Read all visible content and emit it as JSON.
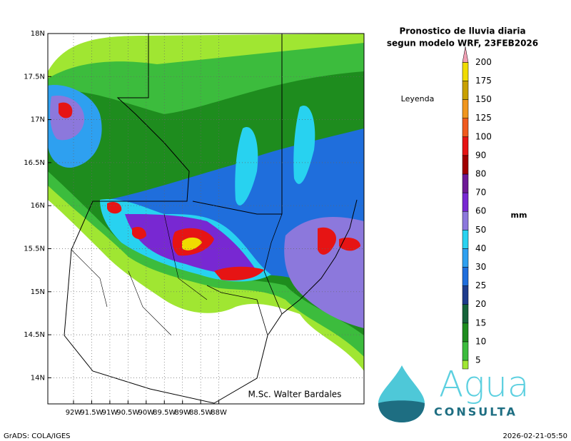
{
  "title": {
    "line1": "Pronostico de lluvia diaria",
    "line2": "segun modelo WRF,  23FEB2026"
  },
  "map": {
    "lat_ticks": [
      {
        "value": 18,
        "label": "18N"
      },
      {
        "value": 17.5,
        "label": "17.5N"
      },
      {
        "value": 17,
        "label": "17N"
      },
      {
        "value": 16.5,
        "label": "16.5N"
      },
      {
        "value": 16,
        "label": "16N"
      },
      {
        "value": 15.5,
        "label": "15.5N"
      },
      {
        "value": 15,
        "label": "15N"
      },
      {
        "value": 14.5,
        "label": "14.5N"
      },
      {
        "value": 14,
        "label": "14N"
      }
    ],
    "lon_ticks": [
      {
        "value": -92,
        "label": "92W"
      },
      {
        "value": -91.5,
        "label": "91.5W"
      },
      {
        "value": -91,
        "label": "91W"
      },
      {
        "value": -90.5,
        "label": "90.5W"
      },
      {
        "value": -90,
        "label": "90W"
      },
      {
        "value": -89.5,
        "label": "89.5W"
      },
      {
        "value": -89,
        "label": "89W"
      },
      {
        "value": -88.5,
        "label": "88.5W"
      },
      {
        "value": -88,
        "label": "88W"
      }
    ],
    "credit": "M.Sc. Walter Bardales"
  },
  "legend": {
    "title": "Leyenda",
    "unit": "mm",
    "levels": [
      5,
      10,
      15,
      20,
      25,
      30,
      40,
      50,
      60,
      70,
      80,
      90,
      100,
      125,
      150,
      175,
      200
    ],
    "colors": [
      "#a0e632",
      "#3cbc3d",
      "#1e8c1e",
      "#16633a",
      "#1e3c8c",
      "#1f6edc",
      "#2ea0f0",
      "#28d2f0",
      "#8c78dc",
      "#7828d2",
      "#6e1a96",
      "#a00000",
      "#e61414",
      "#f05a1e",
      "#f0961e",
      "#c8a000",
      "#f0dc00",
      "#f0a0b4"
    ]
  },
  "logo": {
    "word": "Agua",
    "subword": "CONSULTA"
  },
  "footer": {
    "left": "GrADS: COLA/IGES",
    "right": "2026-02-21-05:50"
  }
}
